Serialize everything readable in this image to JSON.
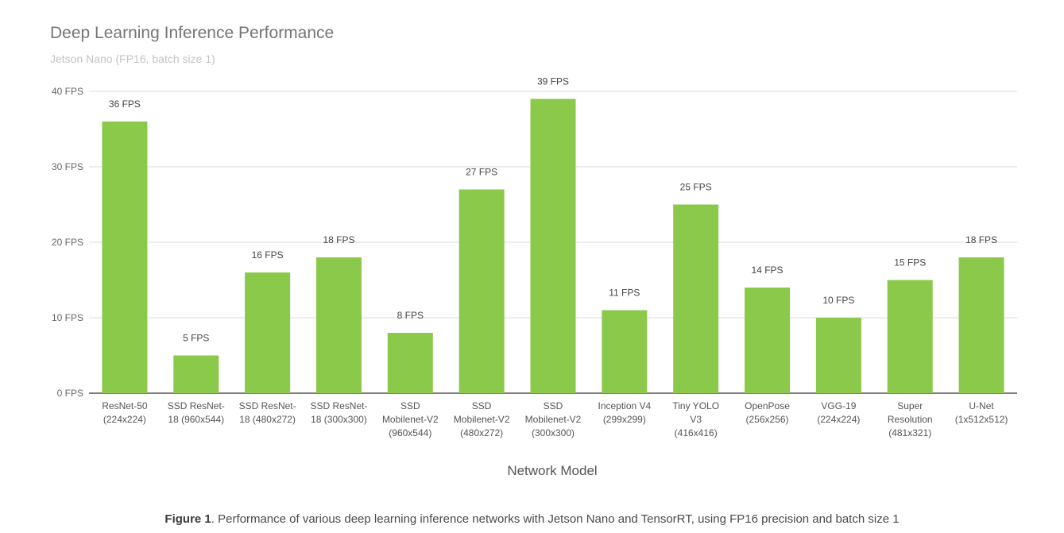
{
  "chart_data": {
    "type": "bar",
    "title": "Deep Learning Inference Performance",
    "subtitle": "Jetson Nano (FP16, batch size 1)",
    "xlabel": "Network Model",
    "ylabel": "",
    "ylim": [
      0,
      40
    ],
    "y_ticks": [
      {
        "value": 0,
        "label": "0 FPS"
      },
      {
        "value": 10,
        "label": "10 FPS"
      },
      {
        "value": 20,
        "label": "20 FPS"
      },
      {
        "value": 30,
        "label": "30 FPS"
      },
      {
        "value": 40,
        "label": "40 FPS"
      }
    ],
    "grid": true,
    "bar_color": "#8bc94a",
    "categories": [
      [
        "ResNet-50",
        "(224x224)"
      ],
      [
        "SSD ResNet-",
        "18 (960x544)"
      ],
      [
        "SSD ResNet-",
        "18 (480x272)"
      ],
      [
        "SSD ResNet-",
        "18 (300x300)"
      ],
      [
        "SSD",
        "Mobilenet-V2",
        "(960x544)"
      ],
      [
        "SSD",
        "Mobilenet-V2",
        "(480x272)"
      ],
      [
        "SSD",
        "Mobilenet-V2",
        "(300x300)"
      ],
      [
        "Inception V4",
        "(299x299)"
      ],
      [
        "Tiny YOLO",
        "V3",
        "(416x416)"
      ],
      [
        "OpenPose",
        "(256x256)"
      ],
      [
        "VGG-19",
        "(224x224)"
      ],
      [
        "Super",
        "Resolution",
        "(481x321)"
      ],
      [
        "U-Net",
        "(1x512x512)"
      ]
    ],
    "values": [
      36,
      5,
      16,
      18,
      8,
      27,
      39,
      11,
      25,
      14,
      10,
      15,
      18
    ],
    "data_labels": [
      "36 FPS",
      "5 FPS",
      "16 FPS",
      "18 FPS",
      "8 FPS",
      "27 FPS",
      "39 FPS",
      "11 FPS",
      "25 FPS",
      "14 FPS",
      "10 FPS",
      "15 FPS",
      "18 FPS"
    ]
  },
  "caption": {
    "label": "Figure 1",
    "text": ". Performance of various deep learning inference networks with Jetson Nano and TensorRT, using FP16 precision and batch size 1"
  }
}
